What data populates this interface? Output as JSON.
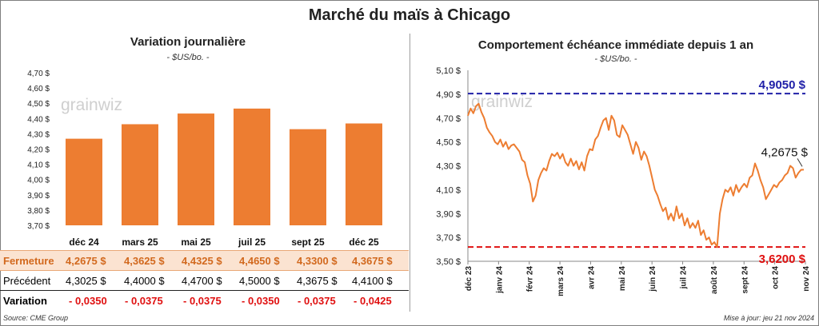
{
  "title": "Marché du maïs à Chicago",
  "left_panel": {
    "title": "Variation journalière",
    "unit": "- $US/bo. -",
    "watermark": "grainwiz"
  },
  "right_panel": {
    "title": "Comportement échéance immédiate depuis 1 an",
    "unit": "- $US/bo. -",
    "watermark": "grainwiz"
  },
  "table": {
    "row_labels": [
      "Fermeture",
      "Précédent",
      "Variation"
    ],
    "fermeture": [
      "4,2675  $",
      "4,3625  $",
      "4,4325  $",
      "4,4650  $",
      "4,3300  $",
      "4,3675  $"
    ],
    "precedent": [
      "4,3025  $",
      "4,4000  $",
      "4,4700  $",
      "4,5000  $",
      "4,3675  $",
      "4,4100  $"
    ],
    "variation": [
      "- 0,0350",
      "- 0,0375",
      "- 0,0375",
      "- 0,0350",
      "- 0,0375",
      "- 0,0425"
    ]
  },
  "footer": {
    "source": "Source: CME Group",
    "update": "Mise à jour: jeu 21 nov 2024"
  },
  "colors": {
    "bar": "#ed7d31",
    "line": "#ed7d31",
    "high_line": "#2020a8",
    "low_line": "#e01010",
    "negative": "#e01010"
  },
  "chart_data": [
    {
      "type": "bar",
      "categories": [
        "déc 24",
        "mars 25",
        "mai 25",
        "juil 25",
        "sept 25",
        "déc 25"
      ],
      "values": [
        4.2675,
        4.3625,
        4.4325,
        4.465,
        4.33,
        4.3675
      ],
      "ylim": [
        3.7,
        4.7
      ],
      "yticks": [
        "3,70 $",
        "3,80 $",
        "3,90 $",
        "4,00 $",
        "4,10 $",
        "4,20 $",
        "4,30 $",
        "4,40 $",
        "4,50 $",
        "4,60 $",
        "4,70 $"
      ],
      "grid": false
    },
    {
      "type": "line",
      "ylim": [
        3.5,
        5.1
      ],
      "yticks": [
        "3,50 $",
        "3,70 $",
        "3,90 $",
        "4,10 $",
        "4,30 $",
        "4,50 $",
        "4,70 $",
        "4,90 $",
        "5,10 $"
      ],
      "xticks": [
        "déc 23",
        "janv 24",
        "févr 24",
        "mars 24",
        "avr 24",
        "mai 24",
        "juin 24",
        "juil 24",
        "août 24",
        "sept 24",
        "oct 24",
        "nov 24"
      ],
      "high": 4.905,
      "high_label": "4,9050 $",
      "low": 3.62,
      "low_label": "3,6200 $",
      "last_label": "4,2675 $",
      "series": [
        {
          "values": [
            4.72,
            4.78,
            4.74,
            4.8,
            4.82,
            4.75,
            4.7,
            4.62,
            4.58,
            4.55,
            4.5,
            4.48,
            4.52,
            4.46,
            4.5,
            4.44,
            4.47,
            4.48,
            4.45,
            4.42,
            4.35,
            4.33,
            4.22,
            4.15,
            4.0,
            4.05,
            4.18,
            4.24,
            4.28,
            4.26,
            4.34,
            4.4,
            4.38,
            4.41,
            4.36,
            4.4,
            4.33,
            4.3,
            4.36,
            4.3,
            4.34,
            4.27,
            4.33,
            4.26,
            4.38,
            4.44,
            4.43,
            4.52,
            4.55,
            4.62,
            4.68,
            4.7,
            4.6,
            4.72,
            4.68,
            4.56,
            4.54,
            4.64,
            4.6,
            4.56,
            4.48,
            4.4,
            4.5,
            4.45,
            4.35,
            4.42,
            4.38,
            4.3,
            4.2,
            4.1,
            4.05,
            3.98,
            3.92,
            3.95,
            3.85,
            3.9,
            3.84,
            3.96,
            3.86,
            3.9,
            3.8,
            3.86,
            3.78,
            3.82,
            3.78,
            3.84,
            3.72,
            3.76,
            3.68,
            3.7,
            3.64,
            3.66,
            3.62,
            3.9,
            4.02,
            4.1,
            4.08,
            4.12,
            4.05,
            4.14,
            4.08,
            4.12,
            4.15,
            4.12,
            4.2,
            4.22,
            4.32,
            4.26,
            4.18,
            4.12,
            4.02,
            4.06,
            4.1,
            4.14,
            4.12,
            4.16,
            4.18,
            4.22,
            4.24,
            4.3,
            4.28,
            4.2,
            4.24,
            4.2667,
            4.2675
          ]
        }
      ]
    }
  ]
}
